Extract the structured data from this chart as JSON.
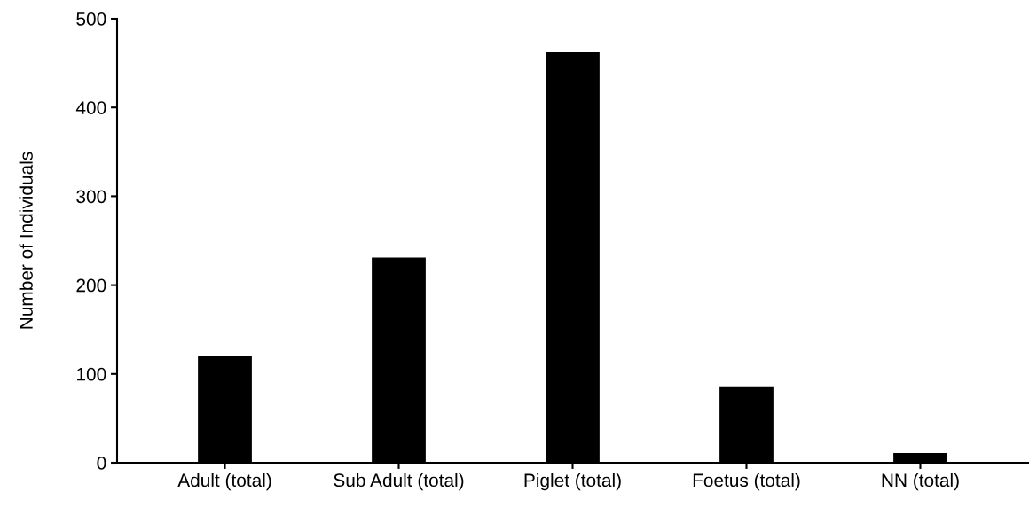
{
  "chart_data": {
    "type": "bar",
    "ylabel": "Number of Individuals",
    "categories": [
      "Adult (total)",
      "Sub Adult (total)",
      "Piglet (total)",
      "Foetus (total)",
      "NN (total)"
    ],
    "values": [
      120,
      231,
      462,
      86,
      11
    ],
    "color": "#000000",
    "ylim": [
      0,
      500
    ],
    "yticks": [
      0,
      100,
      200,
      300,
      400,
      500
    ],
    "grid": false,
    "legend": false
  }
}
